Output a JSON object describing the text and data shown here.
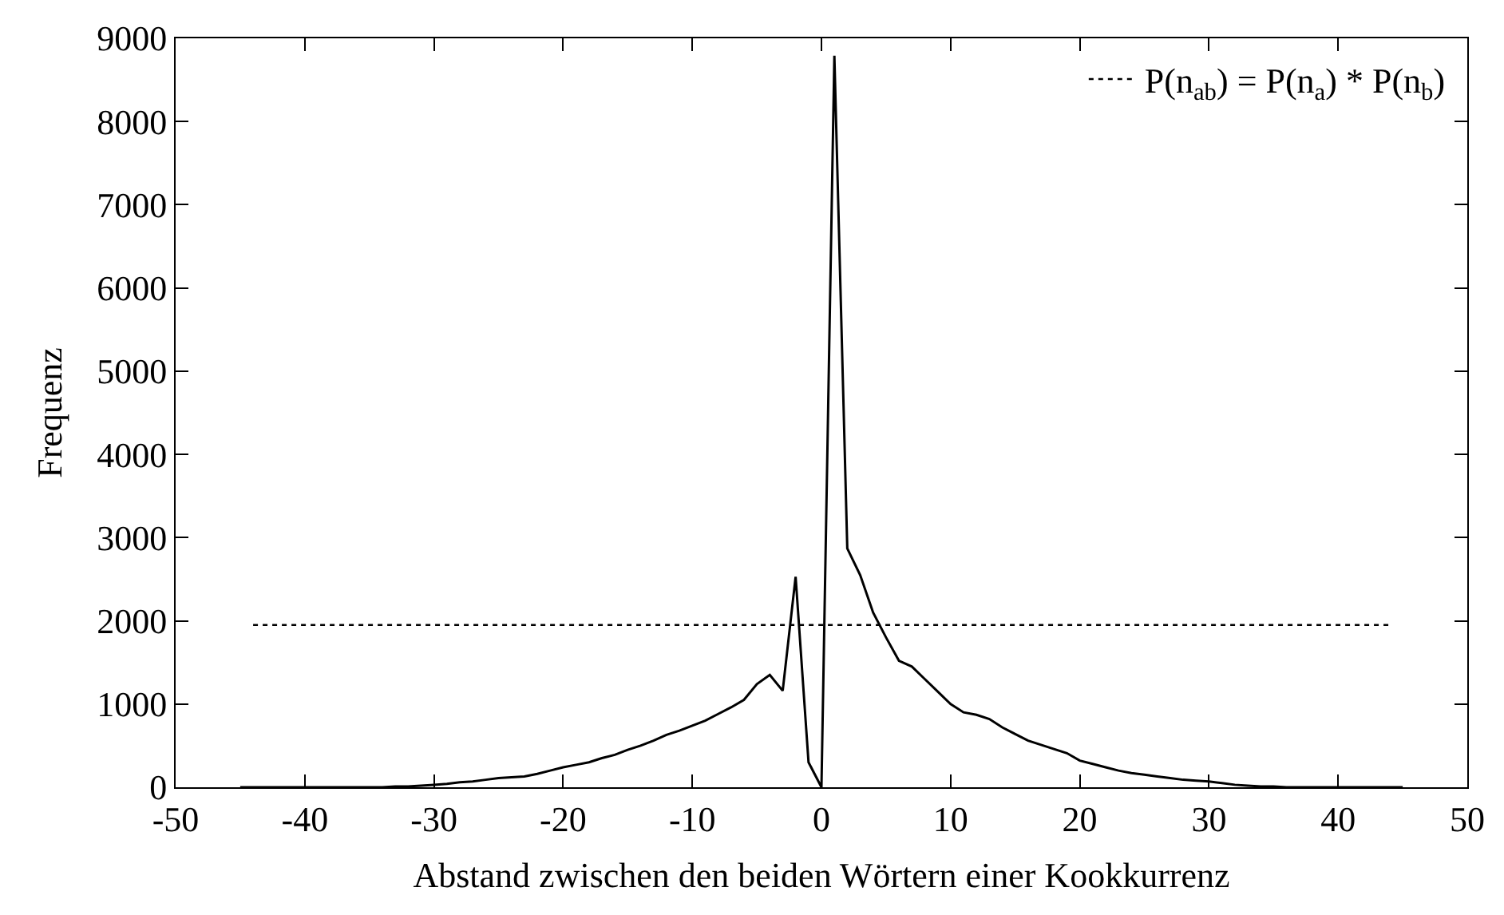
{
  "chart_data": {
    "type": "line",
    "xlabel": "Abstand zwischen den beiden Wörtern einer Kookkurrenz",
    "ylabel": "Frequenz",
    "xlim": [
      -50,
      50
    ],
    "xticks": [
      -50,
      -40,
      -30,
      -20,
      -10,
      0,
      10,
      20,
      30,
      40,
      50
    ],
    "ylim": [
      0,
      9000
    ],
    "yticks": [
      0,
      1000,
      2000,
      3000,
      4000,
      5000,
      6000,
      7000,
      8000,
      9000
    ],
    "legend": "top right",
    "series": [
      {
        "color": "#000000",
        "line_style": "solid",
        "x": [
          -45,
          -44,
          -43,
          -42,
          -41,
          -40,
          -39,
          -38,
          -37,
          -36,
          -35,
          -34,
          -33,
          -32,
          -31,
          -30,
          -29,
          -28,
          -27,
          -26,
          -25,
          -24,
          -23,
          -22,
          -21,
          -20,
          -19,
          -18,
          -17,
          -16,
          -15,
          -14,
          -13,
          -12,
          -11,
          -10,
          -9,
          -8,
          -7,
          -6,
          -5,
          -4,
          -3,
          -2,
          -1,
          0,
          1,
          2,
          3,
          4,
          5,
          6,
          7,
          8,
          9,
          10,
          11,
          12,
          13,
          14,
          15,
          16,
          17,
          18,
          19,
          20,
          21,
          22,
          23,
          24,
          25,
          26,
          27,
          28,
          29,
          30,
          31,
          32,
          33,
          34,
          35,
          36,
          37,
          38,
          39,
          40,
          41,
          42,
          43,
          44,
          45
        ],
        "values": [
          0,
          0,
          0,
          0,
          0,
          0,
          0,
          0,
          0,
          0,
          0,
          0,
          10,
          10,
          20,
          30,
          40,
          60,
          70,
          90,
          110,
          120,
          130,
          160,
          200,
          240,
          270,
          300,
          350,
          390,
          450,
          500,
          560,
          630,
          680,
          740,
          800,
          880,
          960,
          1050,
          1240,
          1350,
          1160,
          2530,
          300,
          0,
          8790,
          2870,
          2550,
          2100,
          1800,
          1520,
          1450,
          1300,
          1150,
          1000,
          900,
          870,
          820,
          720,
          640,
          560,
          510,
          460,
          410,
          320,
          280,
          240,
          200,
          170,
          150,
          130,
          110,
          90,
          80,
          70,
          50,
          30,
          20,
          10,
          10,
          0,
          0,
          0,
          0,
          0,
          0,
          0,
          0,
          0,
          0
        ]
      },
      {
        "name": "P(n$_{ab}$) = P(n$_{a}$) * P(n$_{b}$)",
        "color": "#000000",
        "line_style": "dotted",
        "x": [
          -44,
          44
        ],
        "values": [
          1950,
          1950
        ]
      }
    ]
  }
}
